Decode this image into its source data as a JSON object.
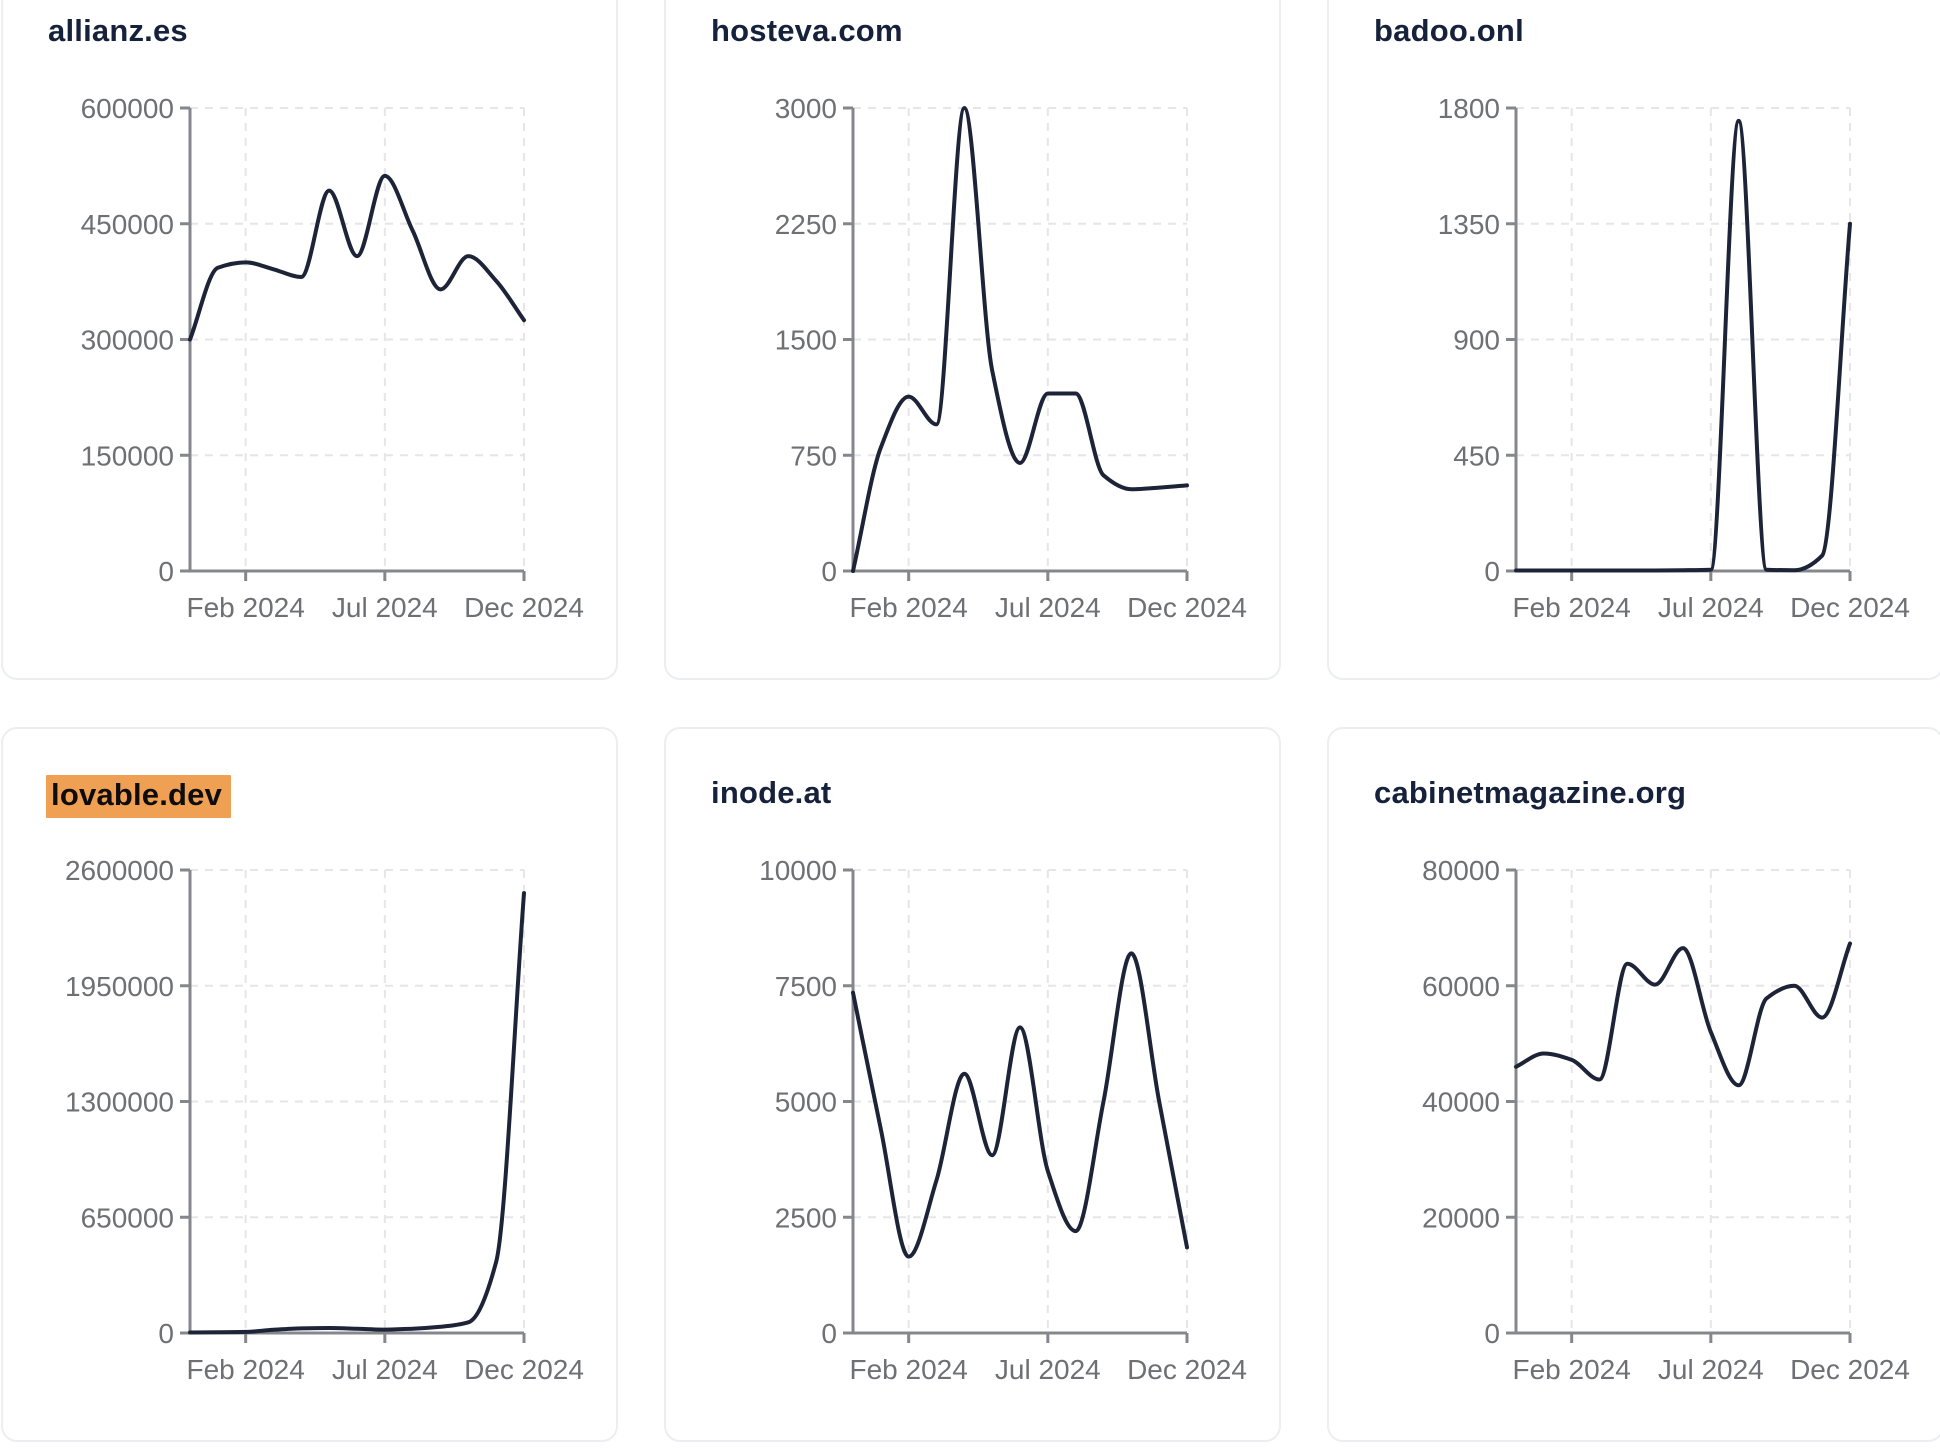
{
  "page": {
    "background": "#ffffff",
    "description": "Dashboard grid of six domain traffic sparkline charts"
  },
  "colors": {
    "line": "#1d2438",
    "title": "#16213b",
    "highlight": "#f0a052",
    "highlight_text": "#0d0d0d",
    "axis": "#85878c",
    "tick_label": "#6e7073",
    "gridline": "#e6e6e9",
    "card_border": "#eceef2"
  },
  "chart_data": [
    {
      "type": "line",
      "title": "allianz.es",
      "highlighted": false,
      "values": [
        300000,
        393000,
        400000,
        391000,
        381000,
        493000,
        408000,
        512000,
        441000,
        365000,
        408000,
        376000,
        325000
      ],
      "y_ticks": [
        0,
        150000,
        300000,
        450000,
        600000
      ],
      "ylim": [
        0,
        600000
      ],
      "x_tick_labels": [
        "Feb 2024",
        "Jul 2024",
        "Dec 2024"
      ],
      "x_tick_positions": [
        2,
        7,
        12
      ],
      "grid": "dashed"
    },
    {
      "type": "line",
      "title": "hosteva.com",
      "highlighted": false,
      "values": [
        0,
        800,
        1130,
        950,
        3000,
        1300,
        700,
        1150,
        1150,
        620,
        530,
        540,
        555
      ],
      "y_ticks": [
        0,
        750,
        1500,
        2250,
        3000
      ],
      "ylim": [
        0,
        3000
      ],
      "x_tick_labels": [
        "Feb 2024",
        "Jul 2024",
        "Dec 2024"
      ],
      "x_tick_positions": [
        2,
        7,
        12
      ],
      "grid": "dashed"
    },
    {
      "type": "line",
      "title": "badoo.onl",
      "highlighted": false,
      "values": [
        2,
        2,
        2,
        2,
        2,
        2,
        3,
        5,
        1750,
        5,
        3,
        60,
        1350
      ],
      "y_ticks": [
        0,
        450,
        900,
        1350,
        1800
      ],
      "ylim": [
        0,
        1800
      ],
      "x_tick_labels": [
        "Feb 2024",
        "Jul 2024",
        "Dec 2024"
      ],
      "x_tick_positions": [
        2,
        7,
        12
      ],
      "grid": "dashed"
    },
    {
      "type": "line",
      "title": "lovable.dev",
      "highlighted": true,
      "values": [
        3000,
        4000,
        6000,
        18000,
        26000,
        28000,
        24000,
        19000,
        24000,
        35000,
        60000,
        400000,
        2470000
      ],
      "y_ticks": [
        0,
        650000,
        1300000,
        1950000,
        2600000
      ],
      "ylim": [
        0,
        2600000
      ],
      "x_tick_labels": [
        "Feb 2024",
        "Jul 2024",
        "Dec 2024"
      ],
      "x_tick_positions": [
        2,
        7,
        12
      ],
      "grid": "dashed"
    },
    {
      "type": "line",
      "title": "inode.at",
      "highlighted": false,
      "values": [
        7350,
        4400,
        1650,
        3300,
        5600,
        3840,
        6600,
        3500,
        2200,
        5000,
        8200,
        5000,
        1850
      ],
      "y_ticks": [
        0,
        2500,
        5000,
        7500,
        10000
      ],
      "ylim": [
        0,
        10000
      ],
      "x_tick_labels": [
        "Feb 2024",
        "Jul 2024",
        "Dec 2024"
      ],
      "x_tick_positions": [
        2,
        7,
        12
      ],
      "grid": "dashed"
    },
    {
      "type": "line",
      "title": "cabinetmagazine.org",
      "highlighted": false,
      "values": [
        46000,
        48300,
        47200,
        43800,
        63800,
        60200,
        66500,
        52000,
        42800,
        57800,
        60000,
        54500,
        67300
      ],
      "y_ticks": [
        0,
        20000,
        40000,
        60000,
        80000
      ],
      "ylim": [
        0,
        80000
      ],
      "x_tick_labels": [
        "Feb 2024",
        "Jul 2024",
        "Dec 2024"
      ],
      "x_tick_positions": [
        2,
        7,
        12
      ],
      "grid": "dashed"
    }
  ]
}
